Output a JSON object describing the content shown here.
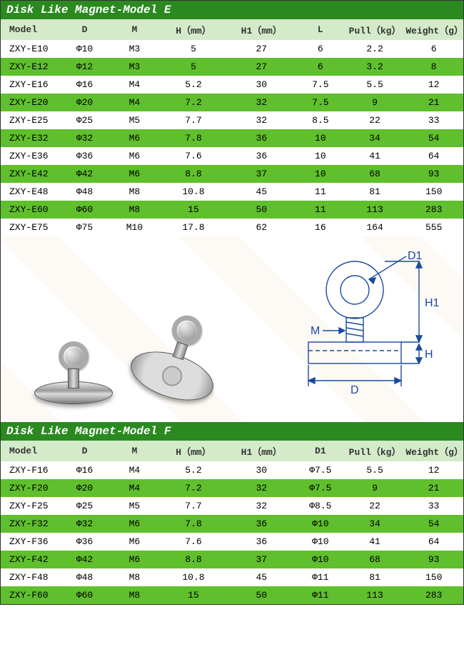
{
  "colors": {
    "title_bg": "#2a8a1f",
    "header_bg": "#d3ebc9",
    "row_alt_bg": "#5fbf2c",
    "row_bg": "#ffffff",
    "text": "#222222",
    "diagram_line": "#1a4aa0"
  },
  "typography": {
    "font_family": "Courier New, monospace",
    "title_fontsize": 16,
    "cell_fontsize": 13
  },
  "col_widths_pct": [
    13,
    11,
    11,
    15,
    15,
    11,
    13,
    13
  ],
  "tableE": {
    "title": "Disk Like Magnet-Model E",
    "columns": [
      "Model",
      "D",
      "M",
      "H（mm）",
      "H1（mm）",
      "L",
      "Pull（kg）",
      "Weight（g）"
    ],
    "rows": [
      [
        "ZXY-E10",
        "Φ10",
        "M3",
        "5",
        "27",
        "6",
        "2.2",
        "6"
      ],
      [
        "ZXY-E12",
        "Φ12",
        "M3",
        "5",
        "27",
        "6",
        "3.2",
        "8"
      ],
      [
        "ZXY-E16",
        "Φ16",
        "M4",
        "5.2",
        "30",
        "7.5",
        "5.5",
        "12"
      ],
      [
        "ZXY-E20",
        "Φ20",
        "M4",
        "7.2",
        "32",
        "7.5",
        "9",
        "21"
      ],
      [
        "ZXY-E25",
        "Φ25",
        "M5",
        "7.7",
        "32",
        "8.5",
        "22",
        "33"
      ],
      [
        "ZXY-E32",
        "Φ32",
        "M6",
        "7.8",
        "36",
        "10",
        "34",
        "54"
      ],
      [
        "ZXY-E36",
        "Φ36",
        "M6",
        "7.6",
        "36",
        "10",
        "41",
        "64"
      ],
      [
        "ZXY-E42",
        "Φ42",
        "M6",
        "8.8",
        "37",
        "10",
        "68",
        "93"
      ],
      [
        "ZXY-E48",
        "Φ48",
        "M8",
        "10.8",
        "45",
        "11",
        "81",
        "150"
      ],
      [
        "ZXY-E60",
        "Φ60",
        "M8",
        "15",
        "50",
        "11",
        "113",
        "283"
      ],
      [
        "ZXY-E75",
        "Φ75",
        "M10",
        "17.8",
        "62",
        "16",
        "164",
        "555"
      ]
    ]
  },
  "tableF": {
    "title": "Disk Like Magnet-Model F",
    "columns": [
      "Model",
      "D",
      "M",
      "H（mm）",
      "H1（mm）",
      "D1",
      "Pull（kg）",
      "Weight（g）"
    ],
    "rows": [
      [
        "ZXY-F16",
        "Φ16",
        "M4",
        "5.2",
        "30",
        "Φ7.5",
        "5.5",
        "12"
      ],
      [
        "ZXY-F20",
        "Φ20",
        "M4",
        "7.2",
        "32",
        "Φ7.5",
        "9",
        "21"
      ],
      [
        "ZXY-F25",
        "Φ25",
        "M5",
        "7.7",
        "32",
        "Φ8.5",
        "22",
        "33"
      ],
      [
        "ZXY-F32",
        "Φ32",
        "M6",
        "7.8",
        "36",
        "Φ10",
        "34",
        "54"
      ],
      [
        "ZXY-F36",
        "Φ36",
        "M6",
        "7.6",
        "36",
        "Φ10",
        "41",
        "64"
      ],
      [
        "ZXY-F42",
        "Φ42",
        "M6",
        "8.8",
        "37",
        "Φ10",
        "68",
        "93"
      ],
      [
        "ZXY-F48",
        "Φ48",
        "M8",
        "10.8",
        "45",
        "Φ11",
        "81",
        "150"
      ],
      [
        "ZXY-F60",
        "Φ60",
        "M8",
        "15",
        "50",
        "Φ11",
        "113",
        "283"
      ]
    ]
  },
  "diagram": {
    "labels": {
      "D": "D",
      "D1": "D1",
      "M": "M",
      "H": "H",
      "H1": "H1"
    }
  }
}
